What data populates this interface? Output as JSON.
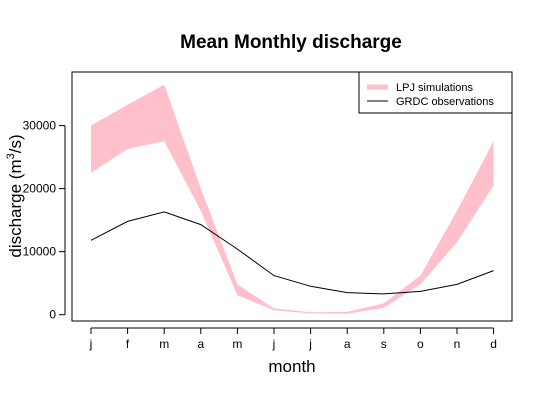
{
  "chart_data": {
    "type": "area",
    "title": "Mean Monthly discharge",
    "xlabel": "month",
    "ylabel_main": "discharge (m",
    "ylabel_sup": "3",
    "ylabel_end": "/s)",
    "categories": [
      "j",
      "f",
      "m",
      "a",
      "m",
      "j",
      "j",
      "a",
      "s",
      "o",
      "n",
      "d"
    ],
    "yticks": [
      0,
      10000,
      20000,
      30000
    ],
    "yticklabels": [
      "0",
      "10000",
      "20000",
      "30000"
    ],
    "ylim": [
      -1000,
      38500
    ],
    "grid": false,
    "legend_position": "top-right",
    "series": [
      {
        "name": "LPJ simulations",
        "kind": "band",
        "color": "#FFC0CB",
        "lower": [
          22500,
          26300,
          27500,
          16500,
          3100,
          700,
          200,
          150,
          1100,
          4800,
          11500,
          20500
        ],
        "upper": [
          30000,
          33300,
          36500,
          20000,
          4800,
          1000,
          400,
          450,
          1800,
          6200,
          16500,
          27500
        ]
      },
      {
        "name": "GRDC observations",
        "kind": "line",
        "color": "#000000",
        "values": [
          11800,
          14800,
          16300,
          14300,
          10400,
          6200,
          4500,
          3500,
          3300,
          3700,
          4800,
          7000
        ]
      }
    ]
  }
}
